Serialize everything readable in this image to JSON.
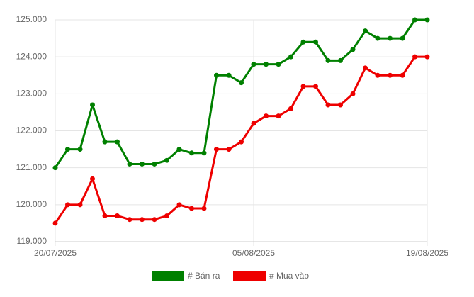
{
  "chart_data": {
    "type": "line",
    "categories": [
      "20/07/2025",
      null,
      null,
      null,
      null,
      null,
      null,
      null,
      null,
      null,
      null,
      null,
      null,
      null,
      null,
      null,
      "05/08/2025",
      null,
      null,
      null,
      null,
      null,
      null,
      null,
      null,
      null,
      null,
      null,
      null,
      null,
      "19/08/2025"
    ],
    "series": [
      {
        "name": "# Bán ra",
        "color": "#008000",
        "values": [
          121000,
          121500,
          121500,
          122700,
          121700,
          121700,
          121100,
          121100,
          121100,
          121200,
          121500,
          121400,
          121400,
          123500,
          123500,
          123300,
          123800,
          123800,
          123800,
          124000,
          124400,
          124400,
          123900,
          123900,
          124200,
          124700,
          124500,
          124500,
          124500,
          125000,
          125000
        ]
      },
      {
        "name": "# Mua vào",
        "color": "#ee0000",
        "values": [
          119500,
          120000,
          120000,
          120700,
          119700,
          119700,
          119600,
          119600,
          119600,
          119700,
          120000,
          119900,
          119900,
          121500,
          121500,
          121700,
          122200,
          122400,
          122400,
          122600,
          123200,
          123200,
          122700,
          122700,
          123000,
          123700,
          123500,
          123500,
          123500,
          124000,
          124000
        ]
      }
    ],
    "ylim": [
      119000,
      125000
    ],
    "yticks": [
      {
        "value": 119000,
        "label": "119.000"
      },
      {
        "value": 120000,
        "label": "120.000"
      },
      {
        "value": 121000,
        "label": "121.000"
      },
      {
        "value": 122000,
        "label": "122.000"
      },
      {
        "value": 123000,
        "label": "123.000"
      },
      {
        "value": 124000,
        "label": "124.000"
      },
      {
        "value": 125000,
        "label": "125.000"
      }
    ],
    "grid": true
  }
}
